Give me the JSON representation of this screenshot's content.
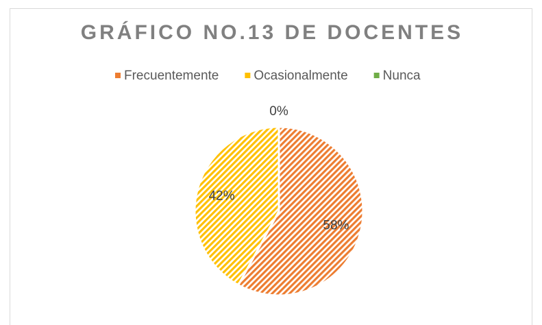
{
  "chart_data": {
    "type": "pie",
    "title": "GRÁFICO NO.13 DE DOCENTES",
    "categories": [
      "Frecuentemente",
      "Ocasionalmente",
      "Nunca"
    ],
    "values": [
      58,
      42,
      0
    ],
    "value_labels": [
      "58%",
      "42%",
      "0%"
    ],
    "colors": [
      "#ED7D31",
      "#FFC000",
      "#70AD47"
    ],
    "legend": "top"
  }
}
